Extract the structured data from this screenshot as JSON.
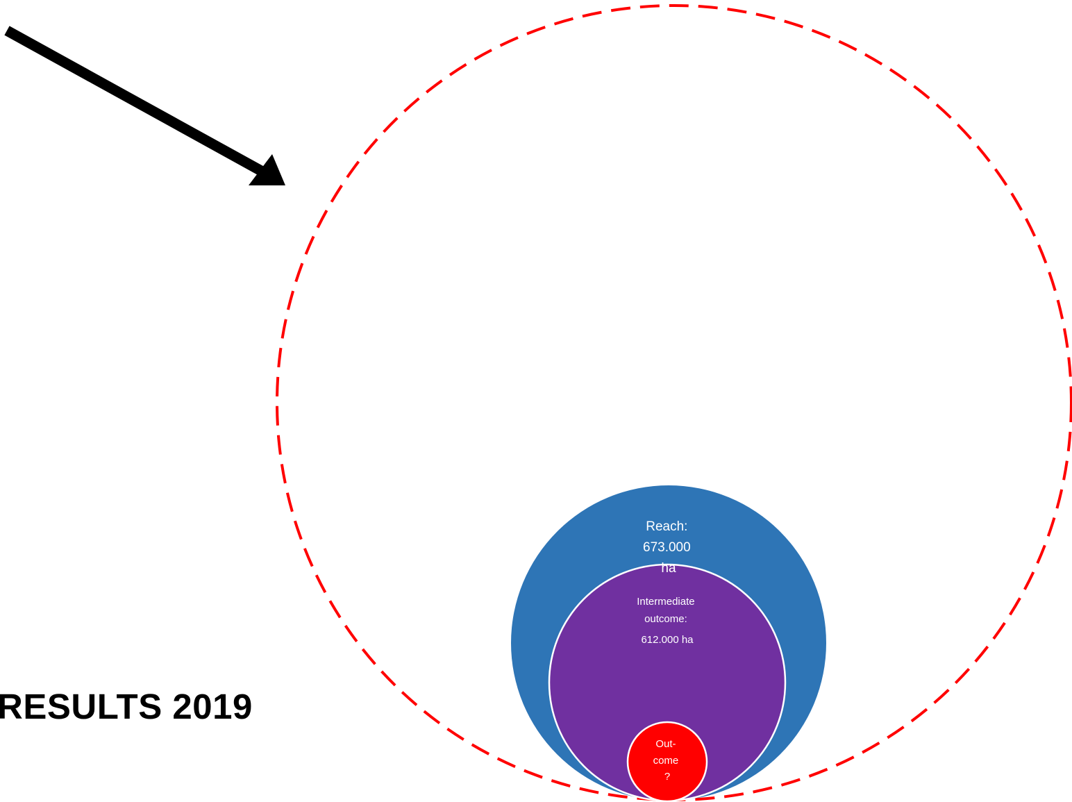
{
  "title": "RESULTS 2019",
  "circles": {
    "reach": {
      "lines": [
        "Reach:",
        "673.000",
        "ha"
      ],
      "color": "#2e75b6"
    },
    "intermediate": {
      "lines": [
        "Intermediate",
        "outcome:",
        "612.000 ha"
      ],
      "color": "#7030a0"
    },
    "outcome": {
      "lines": [
        "Out-",
        "come",
        "?"
      ],
      "color": "#ff0000"
    },
    "potential": {
      "border_color": "#ff0000",
      "border_style": "dashed"
    }
  },
  "arrow": {
    "color": "#000000"
  }
}
